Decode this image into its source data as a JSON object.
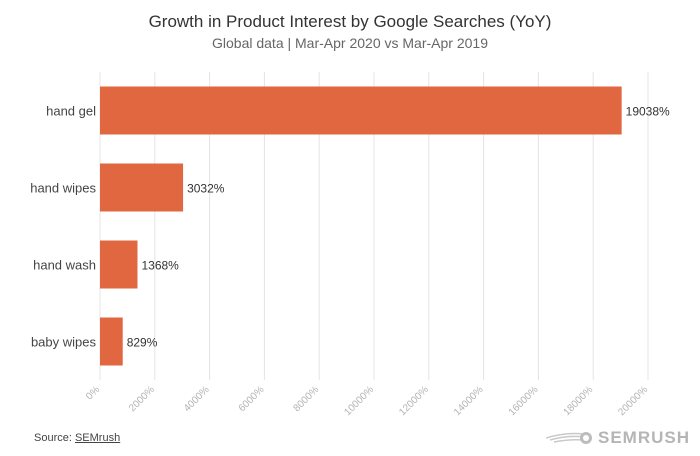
{
  "header": {
    "title": "Growth in Product Interest by Google Searches (YoY)",
    "subtitle": "Global data | Mar-Apr 2020 vs Mar-Apr 2019"
  },
  "footer": {
    "source_prefix": "Source: ",
    "source_link": "SEMrush",
    "logo_text": "SEMRUSH"
  },
  "colors": {
    "bar": "#e0673f",
    "grid": "#e4e4e4",
    "tick": "#b3b3b3"
  },
  "chart_data": {
    "type": "bar",
    "orientation": "horizontal",
    "categories": [
      "hand gel",
      "hand wipes",
      "hand wash",
      "baby wipes"
    ],
    "values": [
      19038,
      3032,
      1368,
      829
    ],
    "data_labels": [
      "19038%",
      "3032%",
      "1368%",
      "829%"
    ],
    "xlim": [
      0,
      20000
    ],
    "xticks": [
      0,
      2000,
      4000,
      6000,
      8000,
      10000,
      12000,
      14000,
      16000,
      18000,
      20000
    ],
    "xtick_labels": [
      "0%",
      "2000%",
      "4000%",
      "6000%",
      "8000%",
      "10000%",
      "12000%",
      "14000%",
      "16000%",
      "18000%",
      "20000%"
    ],
    "title": "Growth in Product Interest by Google Searches (YoY)",
    "subtitle": "Global data | Mar-Apr 2020 vs Mar-Apr 2019",
    "grid": true,
    "legend": false
  }
}
